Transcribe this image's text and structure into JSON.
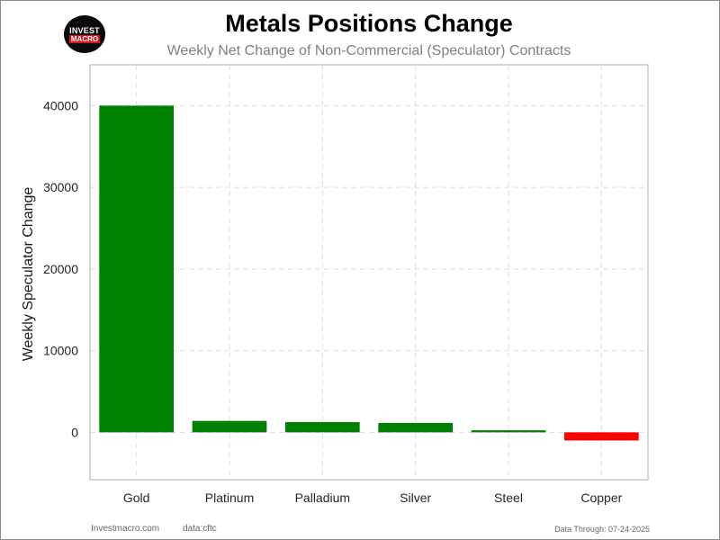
{
  "header": {
    "logo_top": "INVEST",
    "logo_bottom": "MACRO",
    "title": "Metals Positions Change",
    "subtitle": "Weekly Net Change of Non-Commercial (Speculator) Contracts"
  },
  "footer": {
    "site": "Investmacro.com",
    "source": "data:cftc",
    "date_note": "Data Through: 07-24-2025"
  },
  "colors": {
    "positive": "#008000",
    "negative": "#ff0000",
    "grid": "#dddddd",
    "axis": "#c8c8c8"
  },
  "chart_data": {
    "type": "bar",
    "categories": [
      "Gold",
      "Platinum",
      "Palladium",
      "Silver",
      "Steel",
      "Copper"
    ],
    "values": [
      40000,
      1400,
      1250,
      1150,
      250,
      -1000
    ],
    "xlabel": "",
    "ylabel": "Weekly Speculator Change",
    "ylim": [
      -5800,
      45000
    ],
    "yticks": [
      0,
      10000,
      20000,
      30000,
      40000
    ],
    "grid": true,
    "legend": "none"
  }
}
